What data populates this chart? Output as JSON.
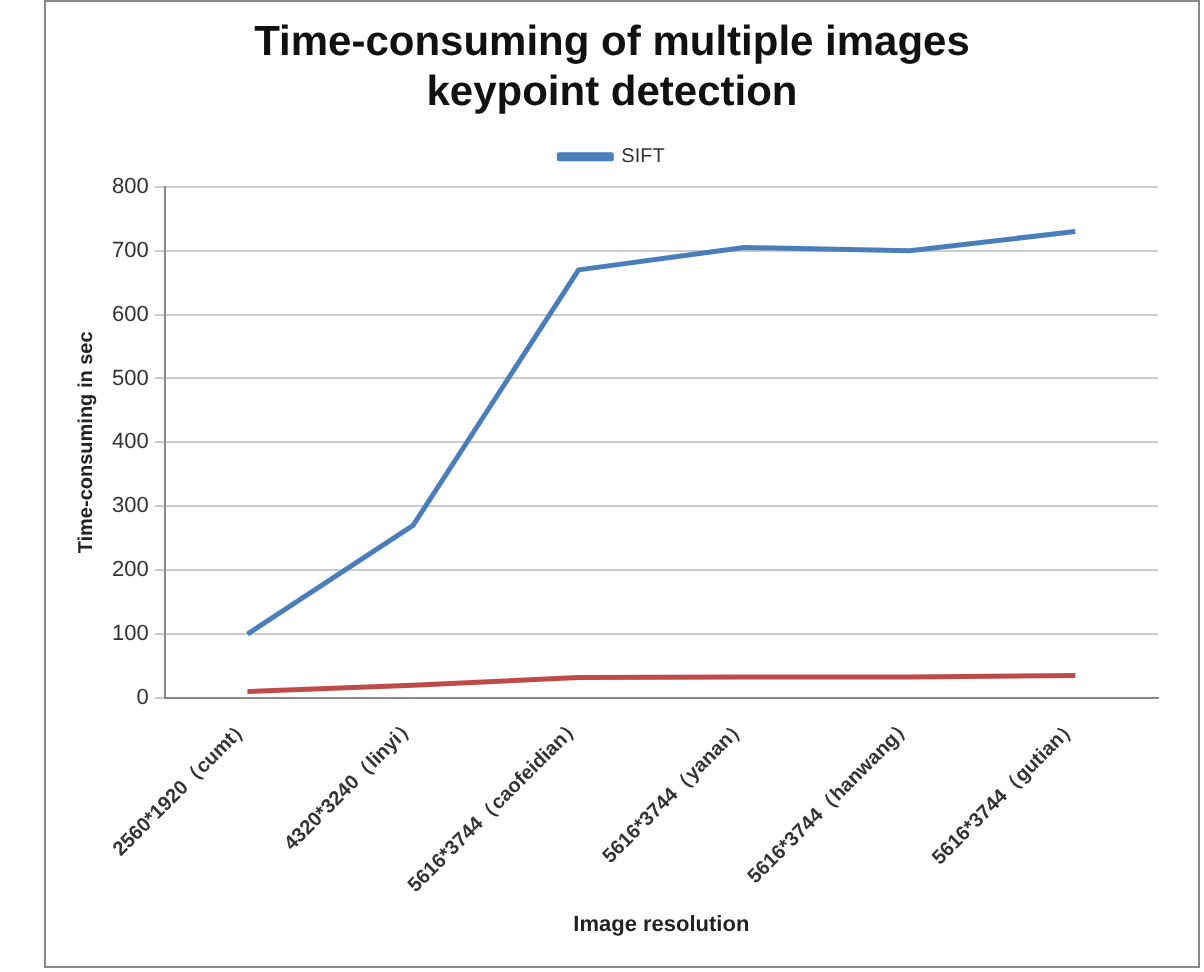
{
  "chart_data": {
    "type": "line",
    "title": "Time-consuming of multiple images keypoint detection",
    "xlabel": "Image resolution",
    "ylabel": "Time-consuming in sec",
    "categories": [
      "2560*1920（cumt）",
      "4320*3240（linyi）",
      "5616*3744（caofeidian）",
      "5616*3744（yanan）",
      "5616*3744（hanwang）",
      "5616*3744（gutian）"
    ],
    "series": [
      {
        "name": "SIFT",
        "color": "#4a7ebb",
        "values": [
          100,
          270,
          670,
          705,
          700,
          730
        ]
      },
      {
        "color": "#be4b48",
        "values": [
          10,
          20,
          32,
          33,
          33,
          35
        ]
      }
    ],
    "ylim": [
      0,
      800
    ],
    "yticks": [
      0,
      100,
      200,
      300,
      400,
      500,
      600,
      700,
      800
    ],
    "grid": "y",
    "legend": "top",
    "marker": "none"
  }
}
